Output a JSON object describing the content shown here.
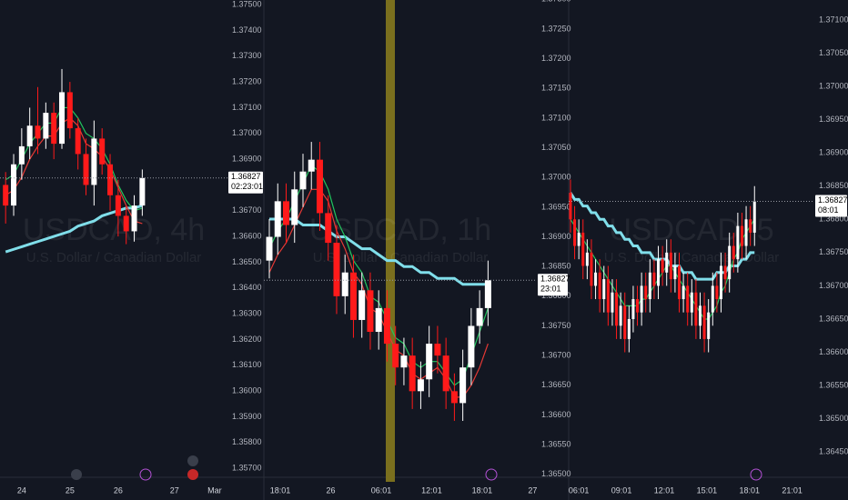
{
  "chart_data": [
    {
      "type": "candlestick",
      "title": "USDCAD, 4h",
      "subtitle": "U.S. Dollar / Canadian Dollar",
      "open": [
        1.368,
        1.3672,
        1.3688,
        1.3695,
        1.3703,
        1.3698,
        1.3708,
        1.3696,
        1.3716,
        1.3702,
        1.3692,
        1.368,
        1.3698,
        1.3688,
        1.3676,
        1.3668,
        1.3662,
        1.3672
      ],
      "high": [
        1.3685,
        1.3692,
        1.3702,
        1.371,
        1.3718,
        1.3712,
        1.3712,
        1.3725,
        1.372,
        1.3706,
        1.3698,
        1.3705,
        1.3702,
        1.3692,
        1.3682,
        1.3672,
        1.3676,
        1.3686
      ],
      "low": [
        1.3665,
        1.3668,
        1.3682,
        1.369,
        1.3692,
        1.3694,
        1.369,
        1.3694,
        1.3698,
        1.3686,
        1.3676,
        1.3672,
        1.3684,
        1.367,
        1.366,
        1.3657,
        1.3658,
        1.3668
      ],
      "close": [
        1.3672,
        1.3688,
        1.3695,
        1.3703,
        1.3698,
        1.3708,
        1.3696,
        1.3716,
        1.3702,
        1.3692,
        1.368,
        1.3698,
        1.3688,
        1.3676,
        1.3668,
        1.3662,
        1.3672,
        1.36827
      ],
      "lines": [
        {
          "color": "#80deea",
          "values": [
            1.3654,
            1.3655,
            1.3656,
            1.3657,
            1.3658,
            1.3659,
            1.366,
            1.3661,
            1.3662,
            1.3664,
            1.3665,
            1.3666,
            1.3668,
            1.3669,
            1.367,
            1.3671,
            1.3671,
            1.3672
          ]
        },
        {
          "color": "#22c55e",
          "values": [
            1.3682,
            1.3684,
            1.369,
            1.3696,
            1.37,
            1.3704,
            1.3704,
            1.371,
            1.371,
            1.3706,
            1.37,
            1.3698,
            1.3694,
            1.3688,
            1.368,
            1.3674,
            1.367,
            1.3671
          ]
        },
        {
          "color": "#e53935",
          "values": [
            1.3676,
            1.3678,
            1.3683,
            1.369,
            1.3695,
            1.3699,
            1.3699,
            1.3704,
            1.3706,
            1.3703,
            1.3696,
            1.3694,
            1.3691,
            1.3686,
            1.3679,
            1.3672,
            1.3666,
            1.3665
          ]
        }
      ],
      "up_color": "#ffffff",
      "down_color": "#ff1a1a",
      "ylim": [
        1.35665,
        1.37518
      ],
      "yticks": [
        {
          "value": 1.375,
          "label": "1.37500"
        },
        {
          "value": 1.374,
          "label": "1.37400"
        },
        {
          "value": 1.373,
          "label": "1.37300"
        },
        {
          "value": 1.372,
          "label": "1.37200"
        },
        {
          "value": 1.371,
          "label": "1.37100"
        },
        {
          "value": 1.37,
          "label": "1.37000"
        },
        {
          "value": 1.369,
          "label": "1.36900"
        },
        {
          "value": 1.368,
          "label": "1.36800"
        },
        {
          "value": 1.367,
          "label": "1.36700"
        },
        {
          "value": 1.366,
          "label": "1.36600"
        },
        {
          "value": 1.365,
          "label": "1.36500"
        },
        {
          "value": 1.364,
          "label": "1.36400"
        },
        {
          "value": 1.363,
          "label": "1.36300"
        },
        {
          "value": 1.362,
          "label": "1.36200"
        },
        {
          "value": 1.361,
          "label": "1.36100"
        },
        {
          "value": 1.36,
          "label": "1.36000"
        },
        {
          "value": 1.359,
          "label": "1.35900"
        },
        {
          "value": 1.358,
          "label": "1.35800"
        },
        {
          "value": 1.357,
          "label": "1.35700"
        }
      ],
      "xlim": [
        -0.7,
        27.6
      ],
      "xticks": [
        {
          "value": 2,
          "label": "24"
        },
        {
          "value": 8,
          "label": "25"
        },
        {
          "value": 14,
          "label": "26"
        },
        {
          "value": 21,
          "label": "27"
        },
        {
          "value": 26,
          "label": "Mar"
        }
      ],
      "last_price": 1.36827,
      "countdown": "02:23:01"
    },
    {
      "type": "candlestick",
      "title": "USDCAD, 1h",
      "subtitle": "U.S. Dollar / Canadian Dollar",
      "open": [
        1.3686,
        1.369,
        1.3696,
        1.3692,
        1.3698,
        1.3701,
        1.3703,
        1.3694,
        1.3689,
        1.368,
        1.3684,
        1.3676,
        1.3681,
        1.3674,
        1.3678,
        1.3672,
        1.3668,
        1.367,
        1.3664,
        1.3666,
        1.3672,
        1.367,
        1.3664,
        1.3662,
        1.3668,
        1.3675,
        1.3678
      ],
      "high": [
        1.3693,
        1.3699,
        1.3699,
        1.3701,
        1.3704,
        1.3706,
        1.3706,
        1.3697,
        1.3692,
        1.3687,
        1.3687,
        1.3684,
        1.3684,
        1.3681,
        1.3681,
        1.3675,
        1.3673,
        1.3673,
        1.3669,
        1.3675,
        1.3675,
        1.3673,
        1.3667,
        1.3671,
        1.3678,
        1.3681,
        1.3686
      ],
      "low": [
        1.3683,
        1.3687,
        1.3689,
        1.3689,
        1.3695,
        1.3698,
        1.3691,
        1.3686,
        1.3677,
        1.3677,
        1.3673,
        1.3673,
        1.3671,
        1.3671,
        1.3669,
        1.3665,
        1.3665,
        1.3661,
        1.3661,
        1.3663,
        1.3667,
        1.3661,
        1.3659,
        1.3659,
        1.3665,
        1.3672,
        1.3675
      ],
      "close": [
        1.369,
        1.3696,
        1.3692,
        1.3698,
        1.3701,
        1.3703,
        1.3694,
        1.3689,
        1.368,
        1.3684,
        1.3676,
        1.3681,
        1.3674,
        1.3678,
        1.3672,
        1.3668,
        1.367,
        1.3664,
        1.3666,
        1.3672,
        1.367,
        1.3664,
        1.3662,
        1.3668,
        1.3675,
        1.3678,
        1.36827
      ],
      "lines": [
        {
          "color": "#80deea",
          "values": [
            1.3693,
            1.3693,
            1.3693,
            1.3693,
            1.3692,
            1.3692,
            1.3692,
            1.3691,
            1.369,
            1.369,
            1.3689,
            1.3688,
            1.3688,
            1.3687,
            1.3686,
            1.3686,
            1.3685,
            1.3685,
            1.3684,
            1.3684,
            1.3683,
            1.3683,
            1.3683,
            1.3682,
            1.3682,
            1.3682,
            1.3682
          ]
        },
        {
          "color": "#22c55e",
          "values": [
            1.3688,
            1.3691,
            1.3693,
            1.3696,
            1.3699,
            1.3702,
            1.3701,
            1.3698,
            1.3693,
            1.369,
            1.3686,
            1.3684,
            1.368,
            1.3679,
            1.3676,
            1.3673,
            1.3672,
            1.3669,
            1.3668,
            1.3669,
            1.3669,
            1.3667,
            1.3665,
            1.3666,
            1.367,
            1.3674,
            1.3678
          ]
        },
        {
          "color": "#e53935",
          "values": [
            1.3684,
            1.3687,
            1.3689,
            1.3692,
            1.3695,
            1.3698,
            1.3698,
            1.3696,
            1.3691,
            1.3688,
            1.3684,
            1.3682,
            1.3678,
            1.3677,
            1.3674,
            1.3671,
            1.367,
            1.3667,
            1.3666,
            1.3667,
            1.3668,
            1.3666,
            1.3663,
            1.3663,
            1.3665,
            1.3668,
            1.3672
          ]
        }
      ],
      "up_color": "#ffffff",
      "down_color": "#ff1a1a",
      "ylim": [
        1.36495,
        1.37299
      ],
      "yticks": [
        {
          "value": 1.373,
          "label": "1.37300"
        },
        {
          "value": 1.3725,
          "label": "1.37250"
        },
        {
          "value": 1.372,
          "label": "1.37200"
        },
        {
          "value": 1.3715,
          "label": "1.37150"
        },
        {
          "value": 1.371,
          "label": "1.37100"
        },
        {
          "value": 1.3705,
          "label": "1.37050"
        },
        {
          "value": 1.37,
          "label": "1.37000"
        },
        {
          "value": 1.3695,
          "label": "1.36950"
        },
        {
          "value": 1.369,
          "label": "1.36900"
        },
        {
          "value": 1.3685,
          "label": "1.36850"
        },
        {
          "value": 1.368,
          "label": "1.36800"
        },
        {
          "value": 1.3675,
          "label": "1.36750"
        },
        {
          "value": 1.367,
          "label": "1.36700"
        },
        {
          "value": 1.3665,
          "label": "1.36650"
        },
        {
          "value": 1.366,
          "label": "1.36600"
        },
        {
          "value": 1.3655,
          "label": "1.36550"
        },
        {
          "value": 1.365,
          "label": "1.36500"
        }
      ],
      "xlim": [
        -0.65,
        31.8
      ],
      "xticks": [
        {
          "value": 1.3,
          "label": "18:01"
        },
        {
          "value": 7.3,
          "label": "26"
        },
        {
          "value": 13.3,
          "label": "06:01"
        },
        {
          "value": 19.3,
          "label": "12:01"
        },
        {
          "value": 25.3,
          "label": "18:01"
        },
        {
          "value": 31.3,
          "label": "27"
        }
      ],
      "last_price": 1.36827,
      "countdown": "23:01"
    },
    {
      "type": "candlestick",
      "title": "USDCAD, 5",
      "subtitle": "U.S. Dollar / Canadian Dollar",
      "open": [
        1.3684,
        1.368,
        1.3676,
        1.3678,
        1.3673,
        1.3675,
        1.367,
        1.3672,
        1.3668,
        1.3671,
        1.3666,
        1.3669,
        1.3664,
        1.3667,
        1.3662,
        1.3665,
        1.3668,
        1.3666,
        1.367,
        1.3668,
        1.3672,
        1.367,
        1.3674,
        1.3672,
        1.3675,
        1.3671,
        1.3673,
        1.3668,
        1.367,
        1.3666,
        1.3669,
        1.3664,
        1.3667,
        1.3662,
        1.3666,
        1.367,
        1.3668,
        1.3673,
        1.3671,
        1.3676,
        1.3674,
        1.3679,
        1.3676,
        1.368,
        1.3678
      ],
      "high": [
        1.3686,
        1.3682,
        1.368,
        1.368,
        1.3677,
        1.3677,
        1.3674,
        1.3674,
        1.3673,
        1.3673,
        1.3671,
        1.3671,
        1.3669,
        1.3669,
        1.3667,
        1.367,
        1.367,
        1.3672,
        1.3672,
        1.3674,
        1.3674,
        1.3676,
        1.3676,
        1.3677,
        1.3677,
        1.3675,
        1.3675,
        1.3672,
        1.3672,
        1.3671,
        1.3671,
        1.3669,
        1.3669,
        1.3668,
        1.3672,
        1.3672,
        1.3675,
        1.3675,
        1.3678,
        1.3678,
        1.3681,
        1.3681,
        1.3682,
        1.3682,
        1.3685
      ],
      "low": [
        1.3678,
        1.3674,
        1.3674,
        1.3671,
        1.3671,
        1.3668,
        1.3668,
        1.3666,
        1.3666,
        1.3664,
        1.3664,
        1.3662,
        1.3662,
        1.366,
        1.366,
        1.3663,
        1.3664,
        1.3664,
        1.3666,
        1.3666,
        1.3668,
        1.3668,
        1.367,
        1.367,
        1.3669,
        1.3669,
        1.3666,
        1.3666,
        1.3664,
        1.3664,
        1.3662,
        1.3662,
        1.366,
        1.366,
        1.3664,
        1.3666,
        1.3666,
        1.3669,
        1.3669,
        1.3672,
        1.3672,
        1.3674,
        1.3674,
        1.3676,
        1.3676
      ],
      "close": [
        1.368,
        1.3676,
        1.3678,
        1.3673,
        1.3675,
        1.367,
        1.3672,
        1.3668,
        1.3671,
        1.3666,
        1.3669,
        1.3664,
        1.3667,
        1.3662,
        1.3665,
        1.3668,
        1.3666,
        1.367,
        1.3668,
        1.3672,
        1.367,
        1.3674,
        1.3672,
        1.3675,
        1.3671,
        1.3673,
        1.3668,
        1.367,
        1.3666,
        1.3669,
        1.3664,
        1.3667,
        1.3662,
        1.3666,
        1.367,
        1.3668,
        1.3673,
        1.3671,
        1.3676,
        1.3674,
        1.3679,
        1.3676,
        1.368,
        1.3678,
        1.36827
      ],
      "lines": [
        {
          "color": "#80deea",
          "values": [
            1.3684,
            1.3683,
            1.3683,
            1.3682,
            1.3682,
            1.3681,
            1.3681,
            1.368,
            1.368,
            1.3679,
            1.3679,
            1.3678,
            1.3678,
            1.3677,
            1.3677,
            1.3676,
            1.3676,
            1.3675,
            1.3675,
            1.3675,
            1.3674,
            1.3674,
            1.3674,
            1.3674,
            1.3673,
            1.3673,
            1.3673,
            1.3672,
            1.3672,
            1.3672,
            1.3671,
            1.3671,
            1.3671,
            1.3671,
            1.3671,
            1.3672,
            1.3672,
            1.3672,
            1.3673,
            1.3673,
            1.3673,
            1.3674,
            1.3674,
            1.3675,
            1.3675
          ]
        },
        {
          "color": "#22c55e",
          "values": [
            1.368,
            1.3679,
            1.3678,
            1.3677,
            1.3676,
            1.3675,
            1.3674,
            1.3673,
            1.3672,
            1.3671,
            1.367,
            1.3669,
            1.3668,
            1.3667,
            1.3667,
            1.3667,
            1.3667,
            1.3668,
            1.3668,
            1.3669,
            1.367,
            1.3671,
            1.3672,
            1.3673,
            1.3673,
            1.3672,
            1.3671,
            1.367,
            1.3669,
            1.3668,
            1.3667,
            1.3666,
            1.3665,
            1.3665,
            1.3666,
            1.3667,
            1.3669,
            1.367,
            1.3672,
            1.3674,
            1.3675,
            1.3677,
            1.3678,
            1.3679,
            1.368
          ]
        }
      ],
      "up_color": "#ffffff",
      "down_color": "#ff1a1a",
      "ylim": [
        1.36412,
        1.3713
      ],
      "yticks": [
        {
          "value": 1.371,
          "label": "1.37100"
        },
        {
          "value": 1.3705,
          "label": "1.37050"
        },
        {
          "value": 1.37,
          "label": "1.37000"
        },
        {
          "value": 1.3695,
          "label": "1.36950"
        },
        {
          "value": 1.369,
          "label": "1.36900"
        },
        {
          "value": 1.3685,
          "label": "1.36850"
        },
        {
          "value": 1.368,
          "label": "1.36800"
        },
        {
          "value": 1.3675,
          "label": "1.36750"
        },
        {
          "value": 1.367,
          "label": "1.36700"
        },
        {
          "value": 1.3665,
          "label": "1.36650"
        },
        {
          "value": 1.366,
          "label": "1.36600"
        },
        {
          "value": 1.3655,
          "label": "1.36550"
        },
        {
          "value": 1.365,
          "label": "1.36500"
        },
        {
          "value": 1.3645,
          "label": "1.36450"
        }
      ],
      "xlim": [
        -0.43,
        58.3
      ],
      "xticks": [
        {
          "value": 2,
          "label": "06:01"
        },
        {
          "value": 12.2,
          "label": "09:01"
        },
        {
          "value": 22.4,
          "label": "12:01"
        },
        {
          "value": 32.6,
          "label": "15:01"
        },
        {
          "value": 42.8,
          "label": "18:01"
        },
        {
          "value": 53,
          "label": "21:01"
        }
      ],
      "last_price": 1.36827,
      "countdown": "08:01"
    }
  ]
}
